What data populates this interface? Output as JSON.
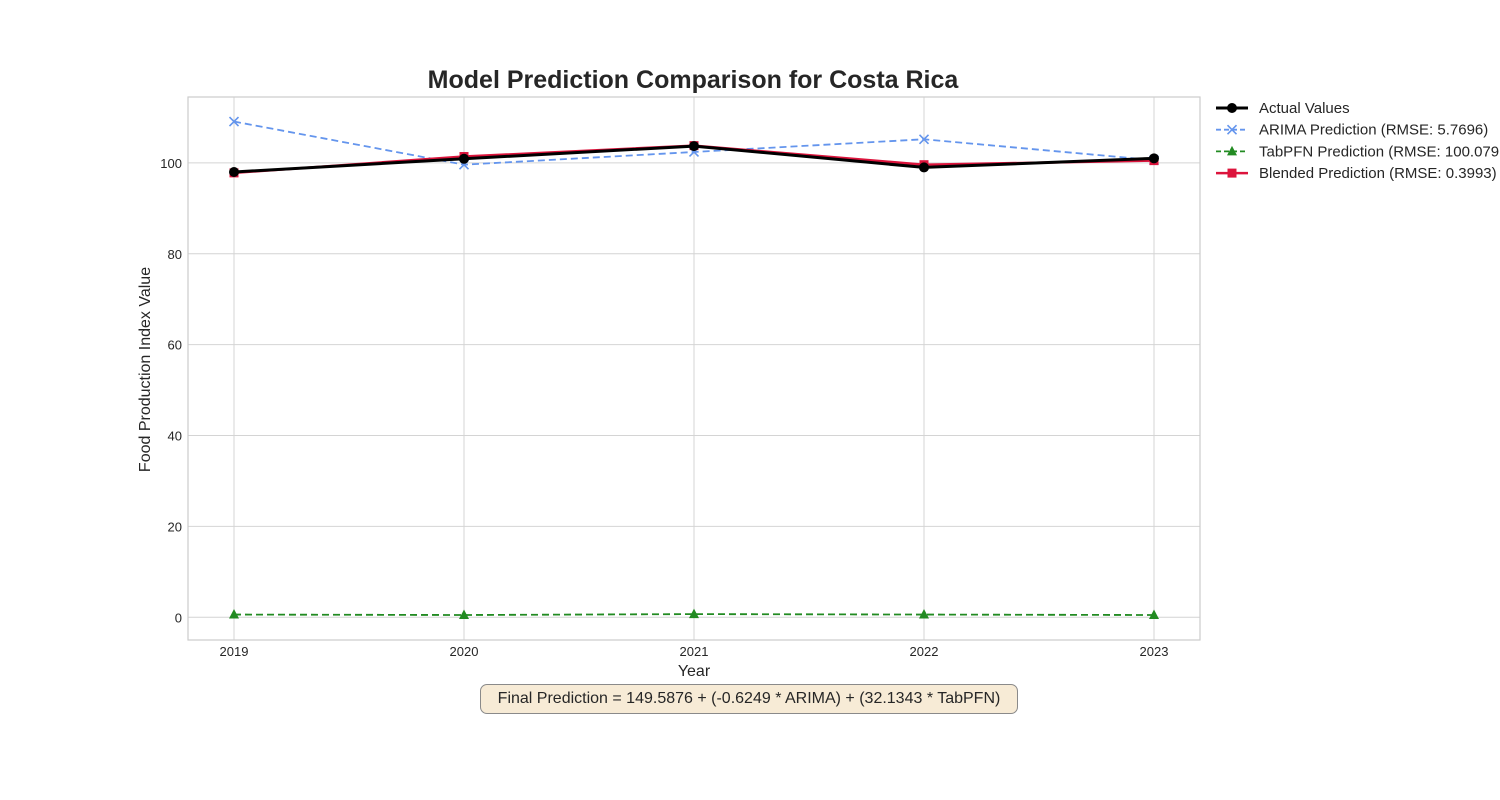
{
  "chart_data": {
    "type": "line",
    "title": "Model Prediction Comparison for Costa Rica",
    "xlabel": "Year",
    "ylabel": "Food Production Index Value",
    "x": [
      2019,
      2020,
      2021,
      2022,
      2023
    ],
    "xlim": [
      2018.8,
      2023.2
    ],
    "ylim": [
      -5,
      114.5
    ],
    "yticks": [
      0,
      20,
      40,
      60,
      80,
      100
    ],
    "grid": true,
    "legend_position": "outside-top-right",
    "series": [
      {
        "name": "Actual Values",
        "values": [
          98.0,
          100.9,
          103.7,
          99.0,
          101.0
        ],
        "color": "#000000",
        "marker": "circle",
        "dash": "solid",
        "width": 3
      },
      {
        "name": "ARIMA Prediction (RMSE: 5.7696)",
        "values": [
          109.1,
          99.6,
          102.4,
          105.2,
          100.6
        ],
        "color": "#6495ed",
        "marker": "x",
        "dash": "dashed",
        "width": 1.8
      },
      {
        "name": "TabPFN Prediction (RMSE: 100.079",
        "values": [
          0.6,
          0.5,
          0.7,
          0.6,
          0.5
        ],
        "color": "#228b22",
        "marker": "triangle",
        "dash": "dashed",
        "width": 1.8
      },
      {
        "name": "Blended Prediction (RMSE: 0.3993)",
        "values": [
          97.8,
          101.4,
          103.8,
          99.6,
          100.5
        ],
        "color": "#dc143c",
        "marker": "square",
        "dash": "solid",
        "width": 2.5
      }
    ],
    "draw_order": [
      1,
      2,
      3,
      0
    ],
    "annotation": "Final Prediction = 149.5876 + (-0.6249 * ARIMA) + (32.1343 * TabPFN)"
  }
}
